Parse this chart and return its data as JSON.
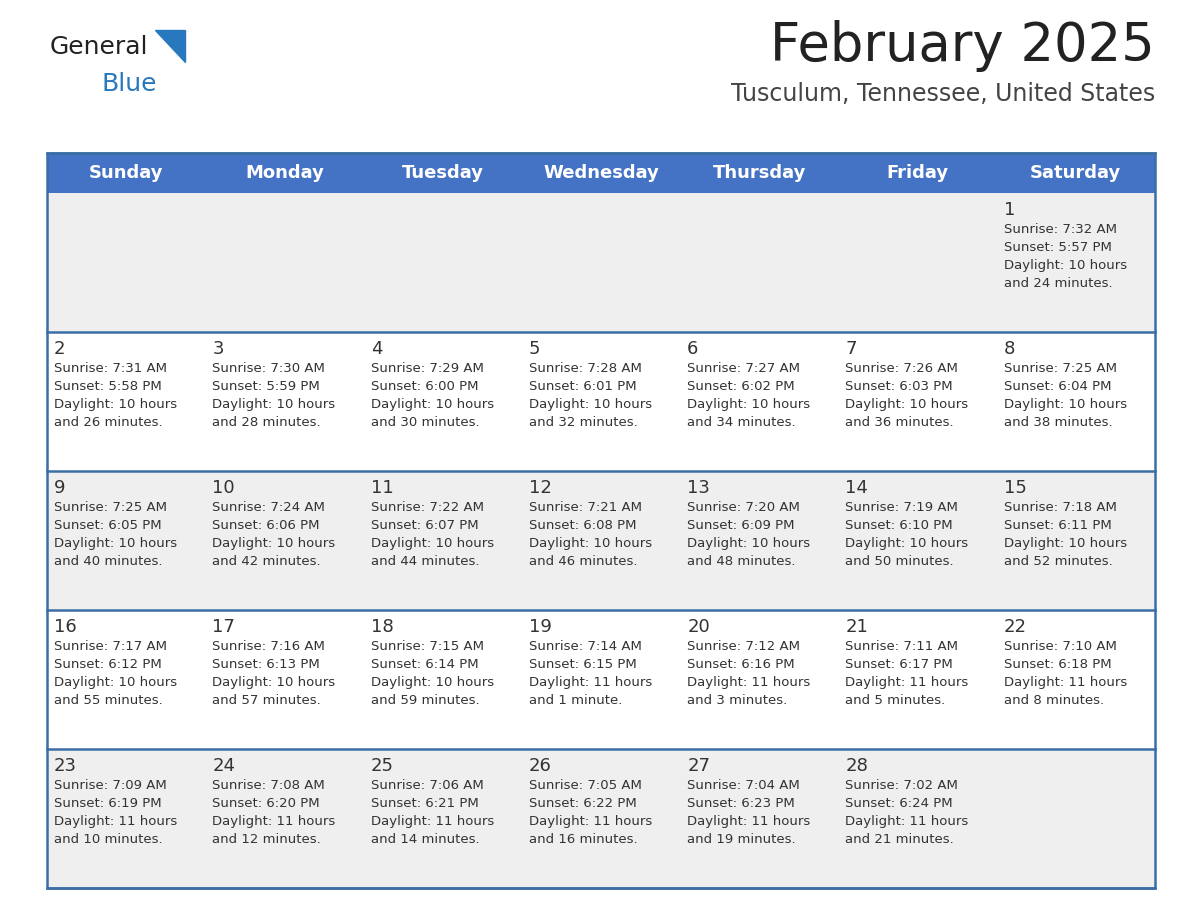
{
  "title": "February 2025",
  "subtitle": "Tusculum, Tennessee, United States",
  "header_color": "#4472C4",
  "header_text_color": "#FFFFFF",
  "row_bg_even": "#EFEFEF",
  "row_bg_odd": "#FFFFFF",
  "cell_border_color": "#3B5998",
  "day_number_color": "#333333",
  "info_text_color": "#333333",
  "days_of_week": [
    "Sunday",
    "Monday",
    "Tuesday",
    "Wednesday",
    "Thursday",
    "Friday",
    "Saturday"
  ],
  "calendar_data": [
    [
      {
        "day": "",
        "sunrise": "",
        "sunset": "",
        "daylight": ""
      },
      {
        "day": "",
        "sunrise": "",
        "sunset": "",
        "daylight": ""
      },
      {
        "day": "",
        "sunrise": "",
        "sunset": "",
        "daylight": ""
      },
      {
        "day": "",
        "sunrise": "",
        "sunset": "",
        "daylight": ""
      },
      {
        "day": "",
        "sunrise": "",
        "sunset": "",
        "daylight": ""
      },
      {
        "day": "",
        "sunrise": "",
        "sunset": "",
        "daylight": ""
      },
      {
        "day": "1",
        "sunrise": "7:32 AM",
        "sunset": "5:57 PM",
        "daylight": "10 hours\nand 24 minutes."
      }
    ],
    [
      {
        "day": "2",
        "sunrise": "7:31 AM",
        "sunset": "5:58 PM",
        "daylight": "10 hours\nand 26 minutes."
      },
      {
        "day": "3",
        "sunrise": "7:30 AM",
        "sunset": "5:59 PM",
        "daylight": "10 hours\nand 28 minutes."
      },
      {
        "day": "4",
        "sunrise": "7:29 AM",
        "sunset": "6:00 PM",
        "daylight": "10 hours\nand 30 minutes."
      },
      {
        "day": "5",
        "sunrise": "7:28 AM",
        "sunset": "6:01 PM",
        "daylight": "10 hours\nand 32 minutes."
      },
      {
        "day": "6",
        "sunrise": "7:27 AM",
        "sunset": "6:02 PM",
        "daylight": "10 hours\nand 34 minutes."
      },
      {
        "day": "7",
        "sunrise": "7:26 AM",
        "sunset": "6:03 PM",
        "daylight": "10 hours\nand 36 minutes."
      },
      {
        "day": "8",
        "sunrise": "7:25 AM",
        "sunset": "6:04 PM",
        "daylight": "10 hours\nand 38 minutes."
      }
    ],
    [
      {
        "day": "9",
        "sunrise": "7:25 AM",
        "sunset": "6:05 PM",
        "daylight": "10 hours\nand 40 minutes."
      },
      {
        "day": "10",
        "sunrise": "7:24 AM",
        "sunset": "6:06 PM",
        "daylight": "10 hours\nand 42 minutes."
      },
      {
        "day": "11",
        "sunrise": "7:22 AM",
        "sunset": "6:07 PM",
        "daylight": "10 hours\nand 44 minutes."
      },
      {
        "day": "12",
        "sunrise": "7:21 AM",
        "sunset": "6:08 PM",
        "daylight": "10 hours\nand 46 minutes."
      },
      {
        "day": "13",
        "sunrise": "7:20 AM",
        "sunset": "6:09 PM",
        "daylight": "10 hours\nand 48 minutes."
      },
      {
        "day": "14",
        "sunrise": "7:19 AM",
        "sunset": "6:10 PM",
        "daylight": "10 hours\nand 50 minutes."
      },
      {
        "day": "15",
        "sunrise": "7:18 AM",
        "sunset": "6:11 PM",
        "daylight": "10 hours\nand 52 minutes."
      }
    ],
    [
      {
        "day": "16",
        "sunrise": "7:17 AM",
        "sunset": "6:12 PM",
        "daylight": "10 hours\nand 55 minutes."
      },
      {
        "day": "17",
        "sunrise": "7:16 AM",
        "sunset": "6:13 PM",
        "daylight": "10 hours\nand 57 minutes."
      },
      {
        "day": "18",
        "sunrise": "7:15 AM",
        "sunset": "6:14 PM",
        "daylight": "10 hours\nand 59 minutes."
      },
      {
        "day": "19",
        "sunrise": "7:14 AM",
        "sunset": "6:15 PM",
        "daylight": "11 hours\nand 1 minute."
      },
      {
        "day": "20",
        "sunrise": "7:12 AM",
        "sunset": "6:16 PM",
        "daylight": "11 hours\nand 3 minutes."
      },
      {
        "day": "21",
        "sunrise": "7:11 AM",
        "sunset": "6:17 PM",
        "daylight": "11 hours\nand 5 minutes."
      },
      {
        "day": "22",
        "sunrise": "7:10 AM",
        "sunset": "6:18 PM",
        "daylight": "11 hours\nand 8 minutes."
      }
    ],
    [
      {
        "day": "23",
        "sunrise": "7:09 AM",
        "sunset": "6:19 PM",
        "daylight": "11 hours\nand 10 minutes."
      },
      {
        "day": "24",
        "sunrise": "7:08 AM",
        "sunset": "6:20 PM",
        "daylight": "11 hours\nand 12 minutes."
      },
      {
        "day": "25",
        "sunrise": "7:06 AM",
        "sunset": "6:21 PM",
        "daylight": "11 hours\nand 14 minutes."
      },
      {
        "day": "26",
        "sunrise": "7:05 AM",
        "sunset": "6:22 PM",
        "daylight": "11 hours\nand 16 minutes."
      },
      {
        "day": "27",
        "sunrise": "7:04 AM",
        "sunset": "6:23 PM",
        "daylight": "11 hours\nand 19 minutes."
      },
      {
        "day": "28",
        "sunrise": "7:02 AM",
        "sunset": "6:24 PM",
        "daylight": "11 hours\nand 21 minutes."
      },
      {
        "day": "",
        "sunrise": "",
        "sunset": "",
        "daylight": ""
      }
    ]
  ]
}
